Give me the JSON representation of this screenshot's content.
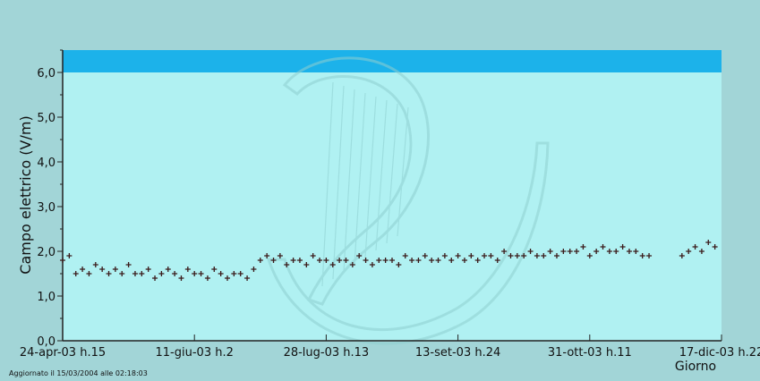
{
  "colors": {
    "outer_background": "#a2d5d7",
    "plot_background": "#b0f1f2",
    "threshold_band": "#1cb2ea",
    "series": "#3a1a1a",
    "watermark": "#8fcfd0"
  },
  "watermark": {
    "icon": "harp-logo"
  },
  "footer_text": "Aggiornato il 15/03/2004 alle 02:18:03",
  "chart_data": {
    "type": "scatter",
    "title": "",
    "ylabel": "Campo elettrico (V/m)",
    "xlabel": "Giorno",
    "ylim": [
      0,
      6.5
    ],
    "yticks": [
      "0,0",
      "1,0",
      "2,0",
      "3,0",
      "4,0",
      "5,0",
      "6,0"
    ],
    "xticks": [
      "24-apr-03 h.15",
      "11-giu-03 h.2",
      "28-lug-03 h.13",
      "13-set-03 h.24",
      "31-ott-03 h.11",
      "17-dic-03 h.22"
    ],
    "xrange": [
      0,
      5
    ],
    "threshold_band": [
      6.0,
      6.5
    ],
    "grid": false,
    "series": [
      {
        "x": [
          0.0,
          0.05,
          0.1,
          0.15,
          0.2,
          0.25,
          0.3,
          0.35,
          0.4,
          0.45,
          0.5,
          0.55,
          0.6,
          0.65,
          0.7,
          0.75,
          0.8,
          0.85,
          0.9,
          0.95,
          1.0,
          1.05,
          1.1,
          1.15,
          1.2,
          1.25,
          1.3,
          1.35,
          1.4,
          1.45,
          1.5,
          1.55,
          1.6,
          1.65,
          1.7,
          1.75,
          1.8,
          1.85,
          1.9,
          1.95,
          2.0,
          2.05,
          2.1,
          2.15,
          2.2,
          2.25,
          2.3,
          2.35,
          2.4,
          2.45,
          2.5,
          2.55,
          2.6,
          2.65,
          2.7,
          2.75,
          2.8,
          2.85,
          2.9,
          2.95,
          3.0,
          3.05,
          3.1,
          3.15,
          3.2,
          3.25,
          3.3,
          3.35,
          3.4,
          3.45,
          3.5,
          3.55,
          3.6,
          3.65,
          3.7,
          3.75,
          3.8,
          3.85,
          3.9,
          3.95,
          4.0,
          4.05,
          4.1,
          4.15,
          4.2,
          4.25,
          4.3,
          4.35,
          4.4,
          4.45,
          4.5,
          4.55,
          4.6,
          4.65,
          4.7,
          4.75,
          4.8,
          4.85,
          4.9,
          4.95
        ],
        "y": [
          1.8,
          1.9,
          1.5,
          1.6,
          1.5,
          1.7,
          1.6,
          1.5,
          1.6,
          1.5,
          1.7,
          1.5,
          1.5,
          1.6,
          1.4,
          1.5,
          1.6,
          1.5,
          1.4,
          1.6,
          1.5,
          1.5,
          1.4,
          1.6,
          1.5,
          1.4,
          1.5,
          1.5,
          1.4,
          1.6,
          1.8,
          1.9,
          1.8,
          1.9,
          1.7,
          1.8,
          1.8,
          1.7,
          1.9,
          1.8,
          1.8,
          1.7,
          1.8,
          1.8,
          1.7,
          1.9,
          1.8,
          1.7,
          1.8,
          1.8,
          1.8,
          1.7,
          1.9,
          1.8,
          1.8,
          1.9,
          1.8,
          1.8,
          1.9,
          1.8,
          1.9,
          1.8,
          1.9,
          1.8,
          1.9,
          1.9,
          1.8,
          2.0,
          1.9,
          1.9,
          1.9,
          2.0,
          1.9,
          1.9,
          2.0,
          1.9,
          2.0,
          2.0,
          2.0,
          2.1,
          1.9,
          2.0,
          2.1,
          2.0,
          2.0,
          2.1,
          2.0,
          2.0,
          1.9,
          1.9,
          null,
          null,
          null,
          null,
          1.9,
          2.0,
          2.1,
          2.0,
          2.2,
          2.1
        ]
      }
    ]
  }
}
